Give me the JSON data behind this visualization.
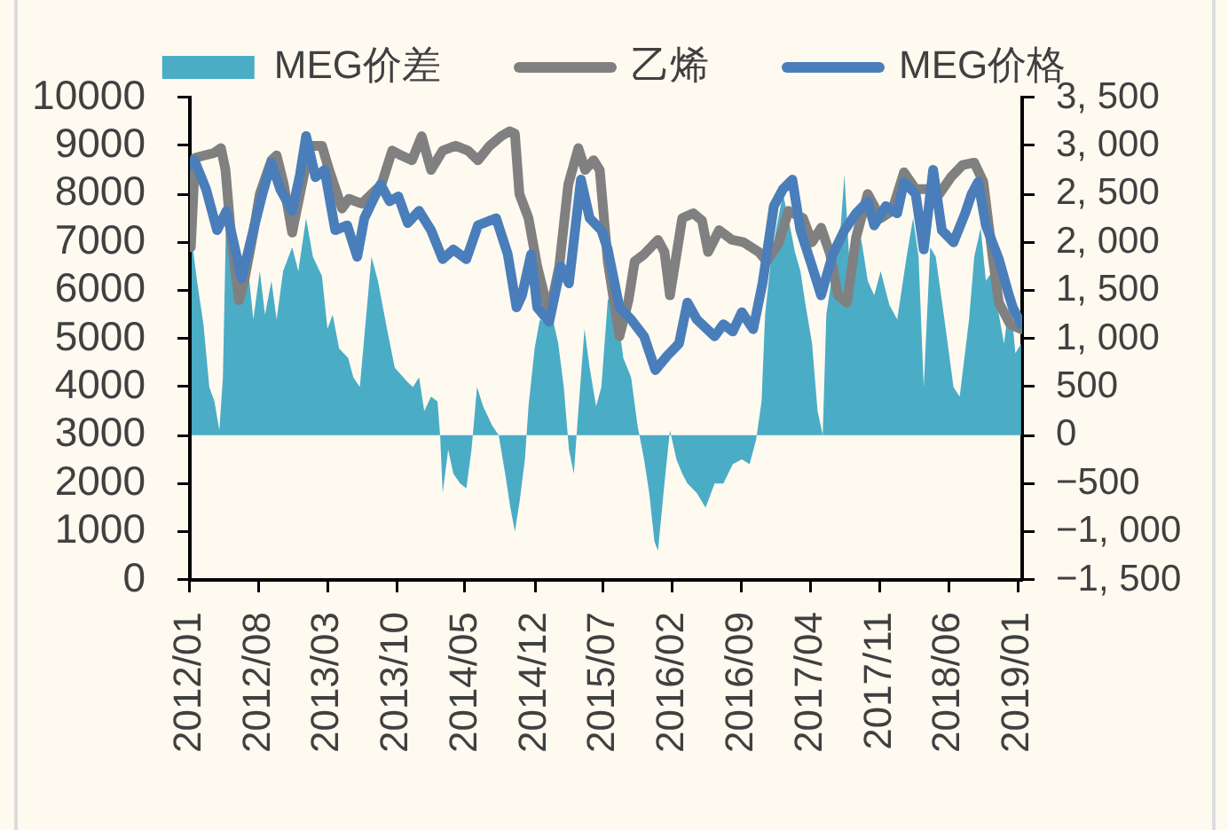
{
  "chart_data": {
    "type": "line",
    "legend": "top",
    "xlim": [
      "2012-01-01",
      "2019-01-15"
    ],
    "xticks": [
      {
        "value": "2012-01",
        "label": "2012/01"
      },
      {
        "value": "2012-08",
        "label": "2012/08"
      },
      {
        "value": "2013-03",
        "label": "2013/03"
      },
      {
        "value": "2013-10",
        "label": "2013/10"
      },
      {
        "value": "2014-05",
        "label": "2014/05"
      },
      {
        "value": "2014-12",
        "label": "2014/12"
      },
      {
        "value": "2015-07",
        "label": "2015/07"
      },
      {
        "value": "2016-02",
        "label": "2016/02"
      },
      {
        "value": "2016-09",
        "label": "2016/09"
      },
      {
        "value": "2017-04",
        "label": "2017/04"
      },
      {
        "value": "2017-11",
        "label": "2017/11"
      },
      {
        "value": "2018-06",
        "label": "2018/06"
      },
      {
        "value": "2019-01",
        "label": "2019/01"
      }
    ],
    "ylim": [
      0,
      10000
    ],
    "yticks": [
      0,
      1000,
      2000,
      3000,
      4000,
      5000,
      6000,
      7000,
      8000,
      9000,
      10000
    ],
    "y2lim": [
      -1500,
      3500
    ],
    "y2ticks": [
      {
        "value": -1500,
        "label": "−1, 500"
      },
      {
        "value": -1000,
        "label": "−1, 000"
      },
      {
        "value": -500,
        "label": "−500"
      },
      0,
      500,
      {
        "value": 1000,
        "label": "1, 000"
      },
      {
        "value": 1500,
        "label": "1, 500"
      },
      {
        "value": 2000,
        "label": "2, 000"
      },
      {
        "value": 2500,
        "label": "2, 500"
      },
      {
        "value": 3000,
        "label": "3, 000"
      },
      {
        "value": 3500,
        "label": "3, 500"
      }
    ],
    "series": [
      {
        "name": "MEG价差",
        "type": "area",
        "axis": "y2",
        "color": "#4bacc6",
        "x": [
          "2012-01-06",
          "2012-01-23",
          "2012-02-12",
          "2012-03-01",
          "2012-03-17",
          "2012-04-01",
          "2012-04-12",
          "2012-04-23",
          "2012-05-20",
          "2012-06-09",
          "2012-06-25",
          "2012-07-15",
          "2012-08-04",
          "2012-08-20",
          "2012-09-09",
          "2012-09-25",
          "2012-10-15",
          "2012-11-12",
          "2012-12-01",
          "2012-12-25",
          "2013-01-15",
          "2013-02-12",
          "2013-03-01",
          "2013-03-17",
          "2013-04-06",
          "2013-05-04",
          "2013-05-20",
          "2013-06-09",
          "2013-06-25",
          "2013-07-15",
          "2013-08-04",
          "2013-09-01",
          "2013-09-25",
          "2013-11-04",
          "2013-11-20",
          "2013-12-09",
          "2013-12-25",
          "2014-01-15",
          "2014-02-04",
          "2014-02-12",
          "2014-02-20",
          "2014-03-09",
          "2014-03-25",
          "2014-04-15",
          "2014-05-04",
          "2014-05-20",
          "2014-06-06",
          "2014-06-25",
          "2014-07-23",
          "2014-08-12",
          "2014-09-01",
          "2014-09-17",
          "2014-10-01",
          "2014-10-15",
          "2014-11-01",
          "2014-11-12",
          "2014-12-01",
          "2014-12-17",
          "2015-01-06",
          "2015-01-23",
          "2015-02-12",
          "2015-03-01",
          "2015-03-17",
          "2015-04-01",
          "2015-04-15",
          "2015-05-04",
          "2015-05-20",
          "2015-06-09",
          "2015-06-25",
          "2015-07-15",
          "2015-07-23",
          "2015-08-12",
          "2015-09-01",
          "2015-09-25",
          "2015-10-15",
          "2015-11-04",
          "2015-11-20",
          "2015-12-06",
          "2015-12-17",
          "2016-01-06",
          "2016-01-23",
          "2016-02-12",
          "2016-03-01",
          "2016-03-17",
          "2016-04-15",
          "2016-05-12",
          "2016-06-09",
          "2016-07-06",
          "2016-08-04",
          "2016-09-01",
          "2016-09-25",
          "2016-10-15",
          "2016-11-01",
          "2016-11-12",
          "2016-12-01",
          "2016-12-17",
          "2017-01-06",
          "2017-01-23",
          "2017-02-12",
          "2017-03-01",
          "2017-03-17",
          "2017-04-06",
          "2017-04-23",
          "2017-05-09",
          "2017-05-20",
          "2017-06-09",
          "2017-07-01",
          "2017-07-15",
          "2017-08-01",
          "2017-08-20",
          "2017-09-09",
          "2017-09-25",
          "2017-10-15",
          "2017-11-04",
          "2017-12-01",
          "2017-12-25",
          "2018-01-23",
          "2018-02-12",
          "2018-03-01",
          "2018-03-17",
          "2018-04-06",
          "2018-04-23",
          "2018-05-20",
          "2018-06-17",
          "2018-07-06",
          "2018-08-04",
          "2018-08-20",
          "2018-09-09",
          "2018-09-25",
          "2018-10-15",
          "2018-11-04",
          "2018-11-20",
          "2018-12-09",
          "2018-12-25",
          "2019-01-12"
        ],
        "values": [
          2050,
          1600,
          1150,
          500,
          350,
          50,
          600,
          2450,
          1850,
          1400,
          1850,
          1200,
          1700,
          1250,
          1600,
          1200,
          1700,
          1950,
          1700,
          2250,
          1850,
          1650,
          1100,
          1250,
          900,
          800,
          600,
          500,
          1100,
          1850,
          1600,
          1100,
          700,
          550,
          500,
          600,
          250,
          400,
          350,
          0,
          -600,
          -150,
          -400,
          -500,
          -550,
          -150,
          500,
          300,
          100,
          0,
          -400,
          -750,
          -1000,
          -700,
          -250,
          300,
          900,
          1200,
          1150,
          1250,
          950,
          500,
          -150,
          -400,
          250,
          1100,
          700,
          300,
          500,
          1400,
          1450,
          1300,
          800,
          600,
          100,
          -250,
          -600,
          -1100,
          -1200,
          -500,
          50,
          -250,
          -400,
          -500,
          -600,
          -750,
          -500,
          -500,
          -300,
          -250,
          -300,
          -50,
          350,
          1250,
          1850,
          2150,
          2500,
          2250,
          1900,
          1700,
          1350,
          950,
          250,
          0,
          1250,
          1700,
          2050,
          2700,
          1700,
          2300,
          1950,
          1600,
          1450,
          1700,
          1350,
          1200,
          1850,
          2250,
          1850,
          500,
          1950,
          1850,
          1200,
          500,
          400,
          1200,
          1850,
          2150,
          1600,
          1700,
          1250,
          950,
          1450,
          850,
          950
        ]
      },
      {
        "name": "乙烯",
        "type": "line",
        "color": "#808080",
        "x": [
          "2012-01-04",
          "2012-01-17",
          "2012-02-15",
          "2012-03-15",
          "2012-04-06",
          "2012-04-20",
          "2012-05-09",
          "2012-06-01",
          "2012-06-17",
          "2012-07-15",
          "2012-08-04",
          "2012-09-09",
          "2012-09-25",
          "2012-10-17",
          "2012-11-12",
          "2012-12-06",
          "2013-01-06",
          "2013-02-12",
          "2013-03-06",
          "2013-04-15",
          "2013-05-06",
          "2013-06-15",
          "2013-07-15",
          "2013-08-15",
          "2013-09-17",
          "2013-10-15",
          "2013-11-17",
          "2013-12-17",
          "2014-01-15",
          "2014-02-20",
          "2014-04-01",
          "2014-05-09",
          "2014-06-09",
          "2014-07-15",
          "2014-08-20",
          "2014-09-15",
          "2014-10-01",
          "2014-10-15",
          "2014-11-12",
          "2014-12-09",
          "2015-01-15",
          "2015-02-15",
          "2015-03-15",
          "2015-04-15",
          "2015-05-06",
          "2015-06-01",
          "2015-06-20",
          "2015-07-15",
          "2015-08-20",
          "2015-09-17",
          "2015-10-06",
          "2015-11-04",
          "2015-12-17",
          "2016-01-06",
          "2016-01-23",
          "2016-03-01",
          "2016-04-04",
          "2016-05-01",
          "2016-05-20",
          "2016-06-23",
          "2016-08-01",
          "2016-09-06",
          "2016-10-23",
          "2016-11-17",
          "2016-12-25",
          "2017-01-23",
          "2017-03-09",
          "2017-04-06",
          "2017-05-04",
          "2017-06-01",
          "2017-06-25",
          "2017-07-23",
          "2017-08-20",
          "2017-09-25",
          "2017-11-04",
          "2017-12-09",
          "2018-01-15",
          "2018-02-20",
          "2018-03-25",
          "2018-05-04",
          "2018-06-09",
          "2018-07-15",
          "2018-08-20",
          "2018-09-17",
          "2018-10-15",
          "2018-11-04",
          "2018-12-09",
          "2019-01-12"
        ],
        "values": [
          6900,
          8750,
          8800,
          8850,
          8950,
          8500,
          7000,
          5800,
          6200,
          7200,
          8000,
          8700,
          8800,
          8200,
          7200,
          8000,
          9000,
          9000,
          8500,
          7700,
          7900,
          7800,
          8000,
          8200,
          8900,
          8800,
          8700,
          9200,
          8500,
          8900,
          9000,
          8900,
          8700,
          9000,
          9200,
          9300,
          9250,
          8000,
          7500,
          6500,
          5500,
          6500,
          8200,
          8950,
          8500,
          8700,
          8500,
          6600,
          5050,
          5800,
          6600,
          6750,
          7050,
          6800,
          5900,
          7500,
          7600,
          7450,
          6800,
          7250,
          7050,
          7000,
          6800,
          6600,
          7000,
          7650,
          7500,
          7000,
          7300,
          6750,
          5900,
          5750,
          7100,
          8000,
          7500,
          7650,
          8450,
          8100,
          8100,
          8000,
          8350,
          8600,
          8650,
          8250,
          6750,
          5750,
          5300,
          5200
        ]
      },
      {
        "name": "MEG价格",
        "type": "line",
        "color": "#4a7ebb",
        "x": [
          "2012-01-06",
          "2012-01-15",
          "2012-02-20",
          "2012-03-25",
          "2012-04-23",
          "2012-05-15",
          "2012-06-09",
          "2012-07-15",
          "2012-08-12",
          "2012-09-09",
          "2012-10-06",
          "2012-11-12",
          "2012-12-06",
          "2012-12-25",
          "2013-01-23",
          "2013-02-20",
          "2013-03-25",
          "2013-05-01",
          "2013-06-01",
          "2013-06-23",
          "2013-08-12",
          "2013-09-09",
          "2013-10-06",
          "2013-11-04",
          "2013-12-09",
          "2014-01-15",
          "2014-02-20",
          "2014-03-25",
          "2014-05-04",
          "2014-06-09",
          "2014-08-04",
          "2014-09-09",
          "2014-10-06",
          "2014-10-23",
          "2014-11-20",
          "2014-12-09",
          "2015-01-15",
          "2015-02-20",
          "2015-03-17",
          "2015-04-23",
          "2015-05-20",
          "2015-06-25",
          "2015-07-15",
          "2015-08-20",
          "2015-09-25",
          "2015-11-04",
          "2015-12-09",
          "2016-01-15",
          "2016-02-20",
          "2016-03-17",
          "2016-04-15",
          "2016-06-09",
          "2016-07-06",
          "2016-08-04",
          "2016-09-01",
          "2016-10-06",
          "2016-11-04",
          "2016-12-09",
          "2017-01-06",
          "2017-02-04",
          "2017-03-01",
          "2017-04-06",
          "2017-05-04",
          "2017-06-09",
          "2017-07-15",
          "2017-08-20",
          "2017-09-25",
          "2017-10-15",
          "2017-11-20",
          "2017-12-25",
          "2018-01-15",
          "2018-02-20",
          "2018-03-17",
          "2018-04-15",
          "2018-05-12",
          "2018-06-17",
          "2018-07-23",
          "2018-08-12",
          "2018-09-01",
          "2018-09-25",
          "2018-11-04",
          "2018-12-01",
          "2018-12-17",
          "2019-01-12"
        ],
        "values": [
          8600,
          8700,
          8100,
          7250,
          7650,
          7000,
          6250,
          7250,
          8000,
          8650,
          8100,
          7650,
          8400,
          9200,
          8350,
          8500,
          7250,
          7350,
          6700,
          7500,
          8200,
          7850,
          7950,
          7400,
          7650,
          7250,
          6650,
          6850,
          6650,
          7350,
          7500,
          6750,
          5650,
          5900,
          6750,
          5650,
          5350,
          6500,
          6150,
          8300,
          7500,
          7250,
          6850,
          5650,
          5400,
          5050,
          4350,
          4650,
          4900,
          5750,
          5400,
          5050,
          5300,
          5150,
          5550,
          5200,
          6150,
          7750,
          8100,
          8300,
          7250,
          6500,
          5900,
          6750,
          7250,
          7600,
          7850,
          7350,
          7750,
          7600,
          8250,
          8000,
          6850,
          8500,
          7250,
          7000,
          7600,
          8000,
          8250,
          7350,
          6650,
          6000,
          5650,
          5300
        ]
      }
    ]
  }
}
